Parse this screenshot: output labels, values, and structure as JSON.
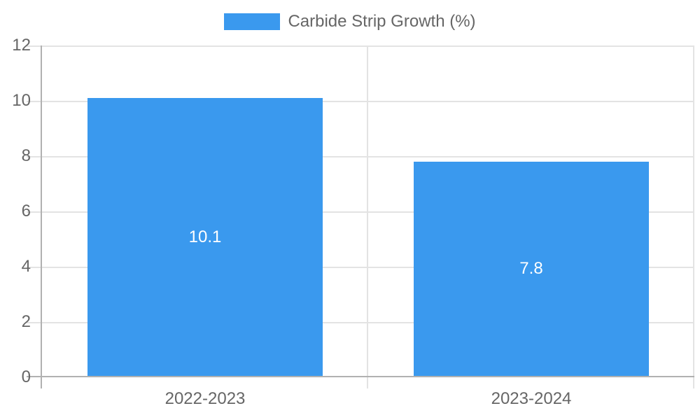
{
  "legend": {
    "label": "Carbide Strip Growth (%)"
  },
  "colors": {
    "bar": "#3A99EE",
    "axis_text": "#666666",
    "grid_line": "#E3E3E3",
    "axis_line": "#B1B1B1",
    "data_label": "#FFFFFF",
    "background": "#FFFFFF"
  },
  "chart_data": {
    "type": "bar",
    "title": "",
    "categories": [
      "2022-2023",
      "2023-2024"
    ],
    "series": [
      {
        "name": "Carbide Strip Growth (%)",
        "values": [
          10.1,
          7.8
        ]
      }
    ],
    "data_labels": [
      "10.1",
      "7.8"
    ],
    "xlabel": "",
    "ylabel": "",
    "ylim": [
      0,
      12
    ],
    "yticks": [
      0,
      2,
      4,
      6,
      8,
      10,
      12
    ],
    "grid": true,
    "legend_position": "top",
    "bar_fraction_of_category": 0.72
  }
}
